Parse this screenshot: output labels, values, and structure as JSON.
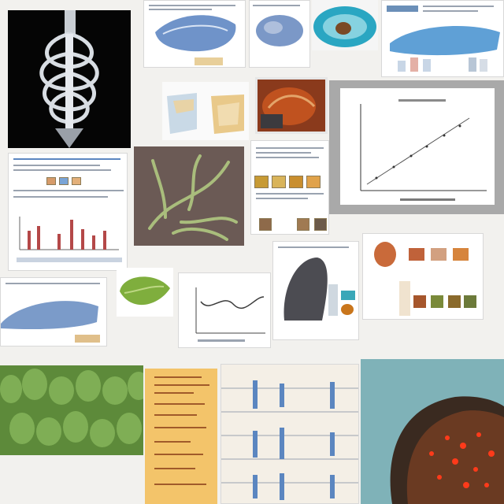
{
  "page": {
    "background": "#f2f1ee"
  },
  "colors": {
    "xray_bg": "#050505",
    "bone": "#d8dde3",
    "blue_render": "#6f93c9",
    "teal_render": "#2aa6c2",
    "plant_bg": "#6b5a55",
    "plant_green": "#a9bd7c",
    "leaf_green": "#7fae3d",
    "grass_green": "#5d8a3a",
    "tan_panel": "#f3c46a",
    "scan_dark": "#3a2a20",
    "scan_red": "#ff3a1a"
  },
  "icons": [
    "skeleton-xray-image",
    "anatomy-render-image",
    "stone-specimen-image",
    "tissue-photo-image",
    "plant-specimen-image",
    "scatter-plot-image",
    "bar-chart-image",
    "organ-render-image",
    "leaf-render-image",
    "line-plot-image",
    "sculpture-photo-image",
    "grass-canopy-image",
    "annotated-page-image",
    "process-diagram-image",
    "fluorescence-scan-image"
  ]
}
